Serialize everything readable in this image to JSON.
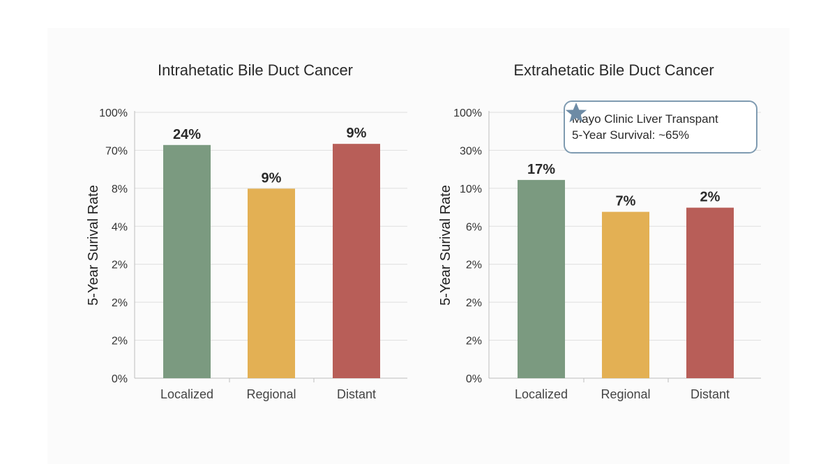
{
  "colors": {
    "localized": "#7b9a80",
    "regional": "#e3b054",
    "distant": "#b85e58",
    "grid": "#dedede",
    "axis": "#bdbdbd",
    "callout_border": "#7f9bb1",
    "star": "#6d8ba5"
  },
  "callout": {
    "icon": "star-icon",
    "line1": "Mayo Clinic Liver Transpant",
    "line2": "5-Year Survival: ~65%"
  },
  "chart_data": [
    {
      "type": "bar",
      "title": "Intrahetatic Bile Duct Cancer",
      "ylabel": "5-Year Surival Rate",
      "tick_labels": [
        "0%",
        "2%",
        "2%",
        "2%",
        "4%",
        "8%",
        "70%",
        "100%"
      ],
      "categories": [
        "Localized",
        "Regional",
        "Distant"
      ],
      "data_labels": [
        "24%",
        "9%",
        "9%"
      ],
      "bar_levels": [
        6.14,
        4.99,
        6.17
      ],
      "grid": true
    },
    {
      "type": "bar",
      "title": "Extrahetatic Bile Duct Cancer",
      "ylabel": "5-Year Surival Rate",
      "tick_labels": [
        "0%",
        "2%",
        "2%",
        "2%",
        "6%",
        "10%",
        "30%",
        "100%"
      ],
      "categories": [
        "Localized",
        "Regional",
        "Distant"
      ],
      "data_labels": [
        "17%",
        "7%",
        "2%"
      ],
      "bar_levels": [
        5.22,
        4.38,
        4.49
      ],
      "grid": true
    }
  ]
}
